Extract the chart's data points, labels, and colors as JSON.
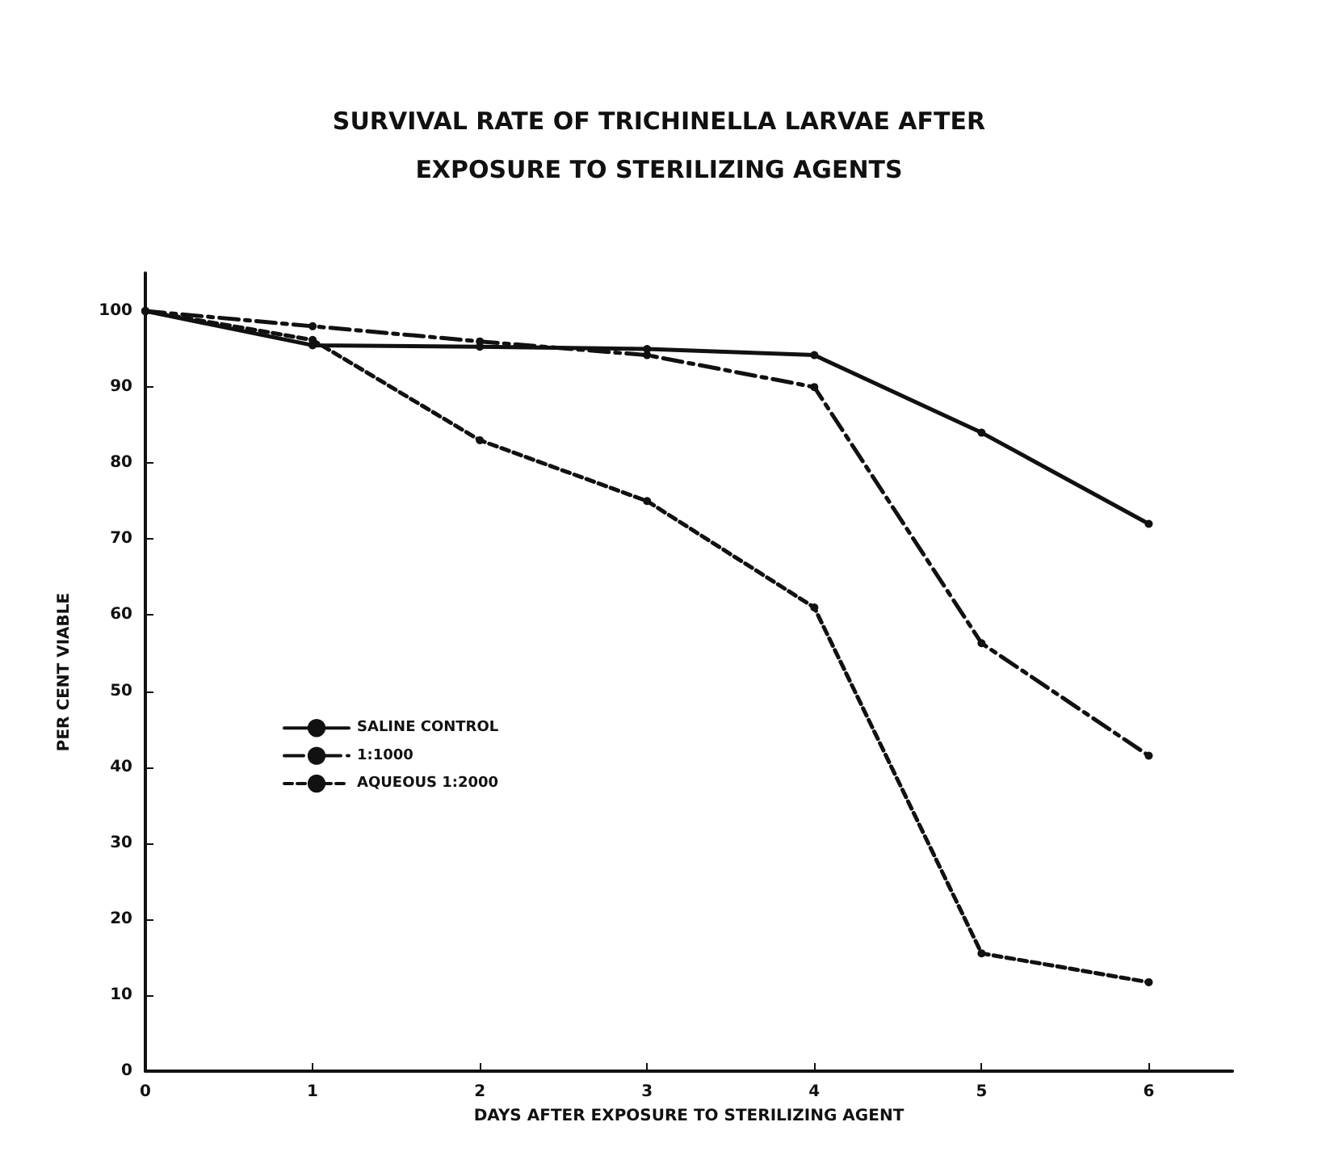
{
  "chart_data": {
    "type": "line",
    "title": "SURVIVAL RATE OF TRICHINELLA LARVAE AFTER\nEXPOSURE TO STERILIZING AGENTS",
    "xlabel": "DAYS AFTER EXPOSURE TO STERILIZING AGENT",
    "ylabel": "PER CENT VIABLE",
    "x": [
      0,
      1,
      2,
      3,
      4,
      5,
      6
    ],
    "series": [
      {
        "name": "SALINE CONTROL",
        "color": "#111111",
        "line_style": "solid",
        "values": [
          100,
          95.5,
          95.3,
          95,
          94.2,
          84,
          72
        ]
      },
      {
        "name": "1:1000",
        "color": "#111111",
        "line_style": "dashed",
        "values": [
          100,
          98,
          96,
          94.2,
          90,
          56.3,
          41.5
        ]
      },
      {
        "name": "AQUEOUS 1:2000",
        "color": "#111111",
        "line_style": "dotted",
        "values": [
          100,
          96.2,
          83,
          75,
          61,
          15.5,
          11.7
        ]
      }
    ],
    "xlim": [
      0,
      6.5
    ],
    "xticks": [
      0,
      1,
      2,
      3,
      4,
      5,
      6
    ],
    "ylim": [
      0,
      105
    ],
    "yticks": [
      0,
      10,
      20,
      30,
      40,
      50,
      60,
      70,
      80,
      90,
      100
    ],
    "grid": false,
    "legend": "left",
    "marker": "circle"
  }
}
